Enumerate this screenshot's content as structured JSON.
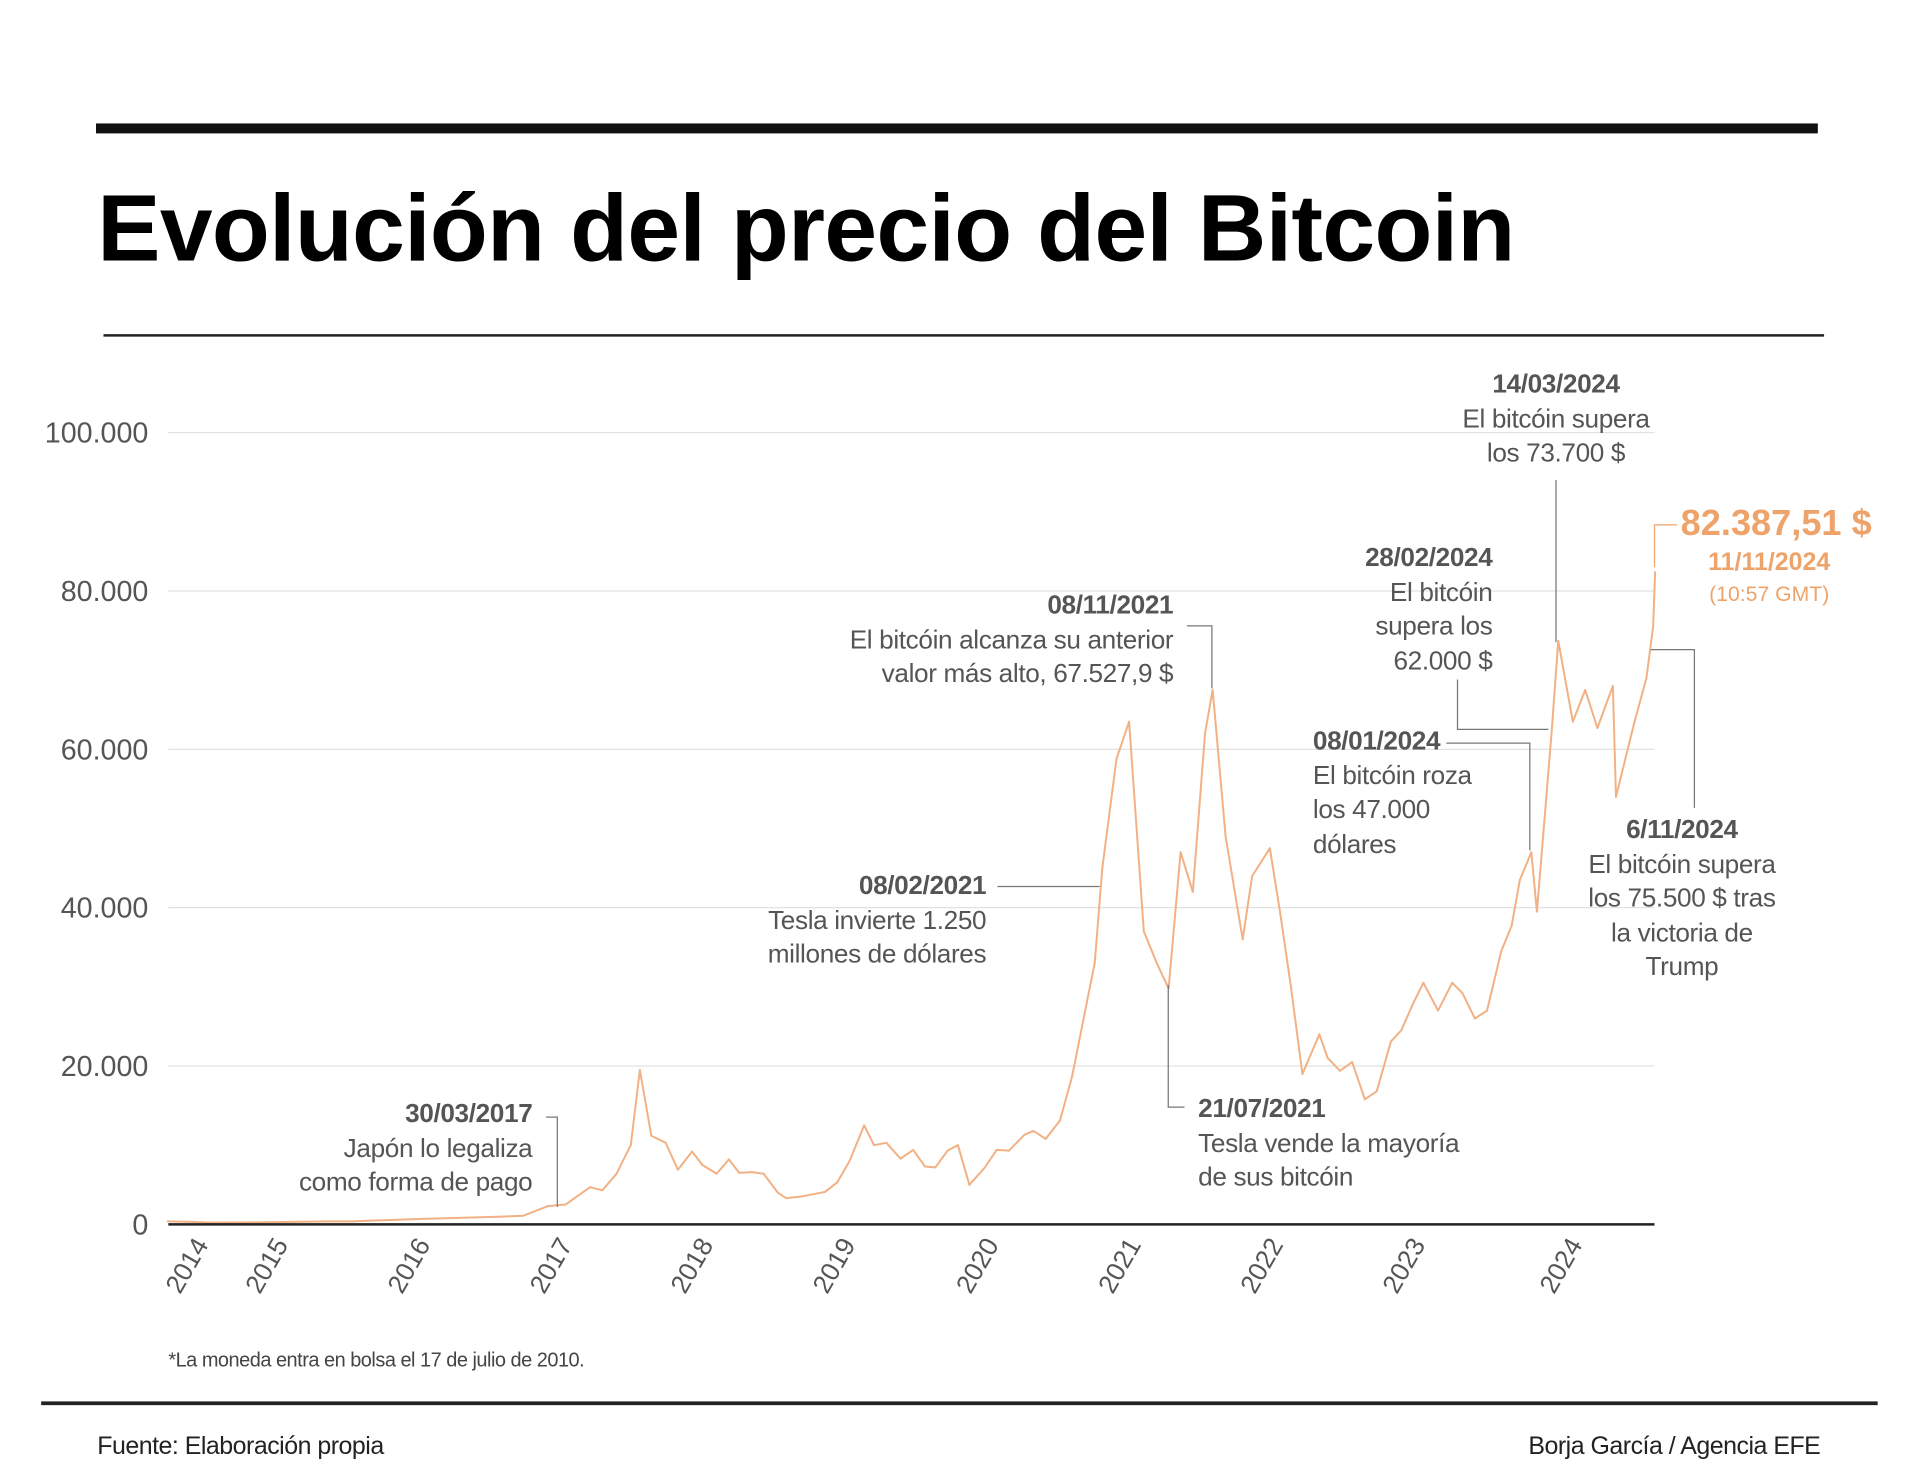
{
  "title": "Evolución del precio del Bitcoin",
  "footnote": "*La moneda entra en bolsa el 17 de julio de 2010.",
  "source": "Fuente: Elaboración propia",
  "credit": "Borja García / Agencia EFE",
  "colors": {
    "line": "#f2b184",
    "highlight": "#eea36a",
    "text": "#555555",
    "grid": "#e2e2e2"
  },
  "chart_data": {
    "type": "line",
    "title": "Evolución del precio del Bitcoin",
    "xlabel": "",
    "ylabel": "",
    "ylim": [
      0,
      100000
    ],
    "grid": true,
    "y_ticks": [
      "0",
      "20.000",
      "40.000",
      "60.000",
      "80.000",
      "100.000"
    ],
    "y_tick_values": [
      0,
      20000,
      40000,
      60000,
      80000,
      100000
    ],
    "x_ticks": [
      "2014",
      "2015",
      "2016",
      "2017",
      "2018",
      "2019",
      "2020",
      "2021",
      "2022",
      "2023",
      "2024"
    ],
    "series": [
      {
        "x": [
          "2014-10-01",
          "2014-12-01",
          "2015-01-15",
          "2015-06-01",
          "2015-11-01",
          "2016-01-01",
          "2016-06-15",
          "2016-12-31",
          "2017-03-01",
          "2017-05-01",
          "2017-06-15",
          "2017-08-15",
          "2017-09-15",
          "2017-10-20",
          "2017-11-25",
          "2017-12-17",
          "2018-01-15",
          "2018-02-20",
          "2018-03-20",
          "2018-04-25",
          "2018-05-20",
          "2018-06-25",
          "2018-07-25",
          "2018-08-20",
          "2018-09-20",
          "2018-10-20",
          "2018-11-25",
          "2018-12-15",
          "2019-01-20",
          "2019-02-20",
          "2019-03-20",
          "2019-04-20",
          "2019-05-20",
          "2019-06-26",
          "2019-07-20",
          "2019-08-20",
          "2019-09-25",
          "2019-10-26",
          "2019-11-25",
          "2019-12-20",
          "2020-01-20",
          "2020-02-15",
          "2020-03-13",
          "2020-04-20",
          "2020-05-20",
          "2020-06-20",
          "2020-07-28",
          "2020-08-20",
          "2020-09-20",
          "2020-10-25",
          "2020-11-25",
          "2020-12-27",
          "2021-01-20",
          "2021-02-08",
          "2021-03-13",
          "2021-04-14",
          "2021-05-20",
          "2021-06-22",
          "2021-07-21",
          "2021-08-20",
          "2021-09-20",
          "2021-10-20",
          "2021-11-08",
          "2021-12-10",
          "2022-01-22",
          "2022-02-15",
          "2022-03-29",
          "2022-04-25",
          "2022-05-20",
          "2022-06-18",
          "2022-07-30",
          "2022-08-20",
          "2022-09-20",
          "2022-10-20",
          "2022-11-21",
          "2022-12-20",
          "2023-01-25",
          "2023-02-20",
          "2023-03-20",
          "2023-04-14",
          "2023-05-20",
          "2023-06-25",
          "2023-07-20",
          "2023-08-20",
          "2023-09-20",
          "2023-10-25",
          "2023-11-20",
          "2023-12-10",
          "2024-01-08",
          "2024-01-22",
          "2024-02-28",
          "2024-03-14",
          "2024-04-20",
          "2024-05-20",
          "2024-06-20",
          "2024-07-28",
          "2024-08-05",
          "2024-09-20",
          "2024-10-20",
          "2024-11-06",
          "2024-11-11"
        ],
        "values": [
          380,
          320,
          220,
          260,
          380,
          380,
          670,
          960,
          1080,
          2300,
          2500,
          4700,
          4300,
          6400,
          10000,
          19500,
          11200,
          10300,
          6900,
          9200,
          7500,
          6400,
          8200,
          6500,
          6600,
          6400,
          4000,
          3300,
          3500,
          3800,
          4100,
          5300,
          8000,
          12500,
          10000,
          10300,
          8300,
          9400,
          7300,
          7200,
          9300,
          10000,
          5000,
          7100,
          9400,
          9300,
          11300,
          11800,
          10800,
          13100,
          18700,
          27000,
          33000,
          45000,
          58800,
          63500,
          37000,
          33000,
          29800,
          47000,
          42000,
          62000,
          67527.9,
          49000,
          36000,
          44000,
          47500,
          39000,
          30000,
          19000,
          24000,
          21000,
          19400,
          20500,
          15800,
          16800,
          23100,
          24500,
          28000,
          30500,
          27000,
          30500,
          29200,
          26000,
          27000,
          34500,
          37700,
          43500,
          47000,
          39500,
          62000,
          73700,
          63500,
          67500,
          62700,
          68000,
          54000,
          63300,
          69000,
          75500,
          82387.51
        ]
      }
    ],
    "annotations": [
      {
        "date": "30/03/2017",
        "lines": [
          "Japón lo legaliza",
          "como forma de pago"
        ]
      },
      {
        "date": "08/02/2021",
        "lines": [
          "Tesla invierte 1.250",
          "millones de dólares"
        ]
      },
      {
        "date": "08/11/2021",
        "lines": [
          "El bitcóin alcanza su anterior",
          "valor más alto, 67.527,9 $"
        ]
      },
      {
        "date": "21/07/2021",
        "lines": [
          "Tesla vende la mayoría",
          "de sus bitcóin"
        ]
      },
      {
        "date": "28/02/2024",
        "lines": [
          "El bitcóin",
          "supera los",
          "62.000 $"
        ]
      },
      {
        "date": "08/01/2024",
        "lines": [
          "El bitcóin roza",
          "los 47.000",
          "dólares"
        ]
      },
      {
        "date": "14/03/2024",
        "lines": [
          "El bitcóin supera",
          "los 73.700 $"
        ]
      },
      {
        "date": "6/11/2024",
        "lines": [
          "El bitcóin supera",
          "los 75.500 $ tras",
          "la victoria de",
          "Trump"
        ]
      }
    ],
    "last_value": {
      "price": "82.387,51 $",
      "date": "11/11/2024",
      "time": "(10:57 GMT)"
    }
  }
}
